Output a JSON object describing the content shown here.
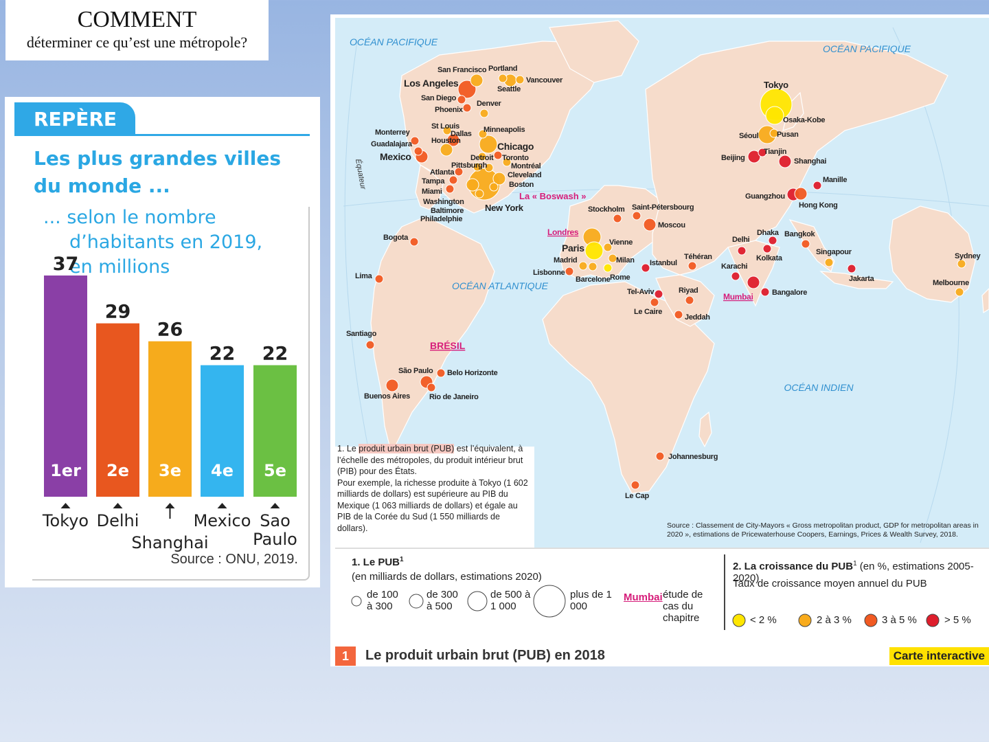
{
  "title": {
    "line1": "COMMENT",
    "line2": "déterminer ce qu’est une métropole?"
  },
  "repere": {
    "tab": "REPÈRE",
    "heading_line1": "Les plus grandes villes",
    "heading_line2": "du monde ...",
    "sub_line1": "... selon le nombre",
    "sub_line2": "d’habitants en 2019,",
    "sub_line3": "en millions",
    "source": "Source : ONU, 2019."
  },
  "chart_data": {
    "type": "bar",
    "title": "Les plus grandes villes du monde ... selon le nombre d’habitants en 2019, en millions",
    "categories": [
      "Tokyo",
      "Delhi",
      "Shanghai",
      "Mexico",
      "Sao Paulo"
    ],
    "values": [
      37,
      29,
      26,
      22,
      22
    ],
    "ranks": [
      "1er",
      "2e",
      "3e",
      "4e",
      "5e"
    ],
    "colors": [
      "#8a3fa6",
      "#e8571f",
      "#f6ab1c",
      "#34b5ef",
      "#6bc043"
    ],
    "ylim": [
      0,
      40
    ]
  },
  "map": {
    "oceans": [
      "OCÉAN PACIFIQUE",
      "OCÉAN PACIFIQUE",
      "OCÉAN ATLANTIQUE",
      "OCÉAN INDIEN"
    ],
    "equator": "Équateur",
    "cities": [
      {
        "name": "Tokyo",
        "size": 4,
        "growth": 1,
        "x": 1130,
        "y": 152
      },
      {
        "name": "Osaka-Kobe",
        "size": 3,
        "growth": 1,
        "x": 1128,
        "y": 168
      },
      {
        "name": "Séoul",
        "size": 3,
        "growth": 2,
        "x": 1117,
        "y": 196
      },
      {
        "name": "Pusan",
        "size": 1,
        "growth": 2,
        "x": 1127,
        "y": 194
      },
      {
        "name": "Tianjin",
        "size": 1,
        "growth": 4,
        "x": 1110,
        "y": 222
      },
      {
        "name": "Beijing",
        "size": 2,
        "growth": 4,
        "x": 1098,
        "y": 228
      },
      {
        "name": "Shanghai",
        "size": 2,
        "growth": 4,
        "x": 1143,
        "y": 235
      },
      {
        "name": "Manille",
        "size": 1,
        "growth": 4,
        "x": 1190,
        "y": 270
      },
      {
        "name": "Guangzhou",
        "size": 2,
        "growth": 4,
        "x": 1155,
        "y": 283
      },
      {
        "name": "Hong Kong",
        "size": 2,
        "growth": 3,
        "x": 1166,
        "y": 282
      },
      {
        "name": "Delhi",
        "size": 1,
        "growth": 4,
        "x": 1080,
        "y": 365
      },
      {
        "name": "Dhaka",
        "size": 1,
        "growth": 4,
        "x": 1125,
        "y": 350
      },
      {
        "name": "Bangkok",
        "size": 1,
        "growth": 3,
        "x": 1173,
        "y": 355
      },
      {
        "name": "Kolkata",
        "size": 1,
        "growth": 4,
        "x": 1117,
        "y": 362
      },
      {
        "name": "Singapour",
        "size": 1,
        "growth": 2,
        "x": 1207,
        "y": 382
      },
      {
        "name": "Karachi",
        "size": 1,
        "growth": 4,
        "x": 1071,
        "y": 402
      },
      {
        "name": "Mumbai",
        "size": 2,
        "growth": 4,
        "x": 1097,
        "y": 411
      },
      {
        "name": "Bangalore",
        "size": 1,
        "growth": 4,
        "x": 1114,
        "y": 425
      },
      {
        "name": "Jakarta",
        "size": 1,
        "growth": 4,
        "x": 1240,
        "y": 391
      },
      {
        "name": "Sydney",
        "size": 1,
        "growth": 2,
        "x": 1400,
        "y": 384
      },
      {
        "name": "Melbourne",
        "size": 1,
        "growth": 2,
        "x": 1397,
        "y": 425
      },
      {
        "name": "Stockholm",
        "size": 1,
        "growth": 3,
        "x": 899,
        "y": 318
      },
      {
        "name": "Saint-Pétersbourg",
        "size": 1,
        "growth": 3,
        "x": 927,
        "y": 314
      },
      {
        "name": "Moscou",
        "size": 2,
        "growth": 3,
        "x": 946,
        "y": 327
      },
      {
        "name": "Londres",
        "size": 3,
        "growth": 2,
        "x": 862,
        "y": 345
      },
      {
        "name": "Paris",
        "size": 3,
        "growth": 1,
        "x": 865,
        "y": 365
      },
      {
        "name": "Vienne",
        "size": 1,
        "growth": 2,
        "x": 885,
        "y": 360
      },
      {
        "name": "Milan",
        "size": 1,
        "growth": 2,
        "x": 892,
        "y": 376
      },
      {
        "name": "Madrid",
        "size": 1,
        "growth": 2,
        "x": 849,
        "y": 387
      },
      {
        "name": "Lisbonne",
        "size": 1,
        "growth": 3,
        "x": 829,
        "y": 395
      },
      {
        "name": "Barcelone",
        "size": 1,
        "growth": 2,
        "x": 863,
        "y": 388
      },
      {
        "name": "Rome",
        "size": 1,
        "growth": 1,
        "x": 885,
        "y": 390
      },
      {
        "name": "Istanbul",
        "size": 1,
        "growth": 4,
        "x": 940,
        "y": 390
      },
      {
        "name": "Téhéran",
        "size": 1,
        "growth": 3,
        "x": 1008,
        "y": 387
      },
      {
        "name": "Tel-Aviv",
        "size": 1,
        "growth": 4,
        "x": 959,
        "y": 428
      },
      {
        "name": "Le Caire",
        "size": 1,
        "growth": 3,
        "x": 953,
        "y": 440
      },
      {
        "name": "Riyad",
        "size": 1,
        "growth": 3,
        "x": 1004,
        "y": 437
      },
      {
        "name": "Jeddah",
        "size": 1,
        "growth": 3,
        "x": 988,
        "y": 458
      },
      {
        "name": "Johannesburg",
        "size": 1,
        "growth": 3,
        "x": 961,
        "y": 664
      },
      {
        "name": "Le Cap",
        "size": 1,
        "growth": 3,
        "x": 925,
        "y": 706
      },
      {
        "name": "Los Angeles",
        "size": 3,
        "growth": 3,
        "x": 680,
        "y": 130
      },
      {
        "name": "San Francisco",
        "size": 2,
        "growth": 2,
        "x": 694,
        "y": 117
      },
      {
        "name": "San Diego",
        "size": 1,
        "growth": 3,
        "x": 672,
        "y": 145
      },
      {
        "name": "Phoenix",
        "size": 1,
        "growth": 3,
        "x": 680,
        "y": 157
      },
      {
        "name": "Portland",
        "size": 1,
        "growth": 2,
        "x": 732,
        "y": 114
      },
      {
        "name": "Seattle",
        "size": 2,
        "growth": 2,
        "x": 743,
        "y": 117
      },
      {
        "name": "Vancouver",
        "size": 1,
        "growth": 2,
        "x": 757,
        "y": 116
      },
      {
        "name": "Denver",
        "size": 1,
        "growth": 2,
        "x": 705,
        "y": 165
      },
      {
        "name": "Minneapolis",
        "size": 1,
        "growth": 2,
        "x": 703,
        "y": 195
      },
      {
        "name": "St Louis",
        "size": 1,
        "growth": 2,
        "x": 651,
        "y": 190
      },
      {
        "name": "Dallas",
        "size": 2,
        "growth": 3,
        "x": 660,
        "y": 204
      },
      {
        "name": "Houston",
        "size": 2,
        "growth": 2,
        "x": 650,
        "y": 218
      },
      {
        "name": "Chicago",
        "size": 3,
        "growth": 2,
        "x": 711,
        "y": 210
      },
      {
        "name": "Monterrey",
        "size": 1,
        "growth": 3,
        "x": 604,
        "y": 205
      },
      {
        "name": "Guadalajara",
        "size": 1,
        "growth": 3,
        "x": 609,
        "y": 220
      },
      {
        "name": "Mexico",
        "size": 2,
        "growth": 3,
        "x": 614,
        "y": 228
      },
      {
        "name": "Detroit",
        "size": 1,
        "growth": 2,
        "x": 702,
        "y": 228
      },
      {
        "name": "Toronto",
        "size": 1,
        "growth": 3,
        "x": 725,
        "y": 226
      },
      {
        "name": "Montréal",
        "size": 1,
        "growth": 2,
        "x": 738,
        "y": 236
      },
      {
        "name": "Pittsburgh",
        "size": 1,
        "growth": 2,
        "x": 695,
        "y": 243
      },
      {
        "name": "Cleveland",
        "size": 1,
        "growth": 2,
        "x": 712,
        "y": 244
      },
      {
        "name": "Boston",
        "size": 2,
        "growth": 2,
        "x": 727,
        "y": 260
      },
      {
        "name": "Atlanta",
        "size": 1,
        "growth": 3,
        "x": 668,
        "y": 250
      },
      {
        "name": "Tampa",
        "size": 1,
        "growth": 3,
        "x": 660,
        "y": 262
      },
      {
        "name": "Miami",
        "size": 1,
        "growth": 3,
        "x": 655,
        "y": 275
      },
      {
        "name": "New York",
        "size": 4,
        "growth": 2,
        "x": 705,
        "y": 268
      },
      {
        "name": "Washington",
        "size": 2,
        "growth": 2,
        "x": 688,
        "y": 269
      },
      {
        "name": "Baltimore",
        "size": 1,
        "growth": 2,
        "x": 698,
        "y": 282
      },
      {
        "name": "Philadelphie",
        "size": 1,
        "growth": 2,
        "x": 719,
        "y": 272
      },
      {
        "name": "Bogota",
        "size": 1,
        "growth": 3,
        "x": 603,
        "y": 352
      },
      {
        "name": "Lima",
        "size": 1,
        "growth": 3,
        "x": 552,
        "y": 406
      },
      {
        "name": "Santiago",
        "size": 1,
        "growth": 3,
        "x": 539,
        "y": 502
      },
      {
        "name": "São Paulo",
        "size": 2,
        "growth": 3,
        "x": 621,
        "y": 556
      },
      {
        "name": "Belo Horizonte",
        "size": 1,
        "growth": 3,
        "x": 642,
        "y": 543
      },
      {
        "name": "Rio de Janeiro",
        "size": 1,
        "growth": 3,
        "x": 628,
        "y": 564
      },
      {
        "name": "Buenos Aires",
        "size": 2,
        "growth": 3,
        "x": 571,
        "y": 561
      }
    ],
    "region_labels": {
      "boswash": "La « Boswash »",
      "bresil": "BRÉSIL"
    },
    "caption": {
      "lead": "1. Le ",
      "hl": "produit urbain brut (PUB)",
      "rest": " est l’équivalent, à l’échelle des métropoles, du produit intérieur brut (PIB) pour des États.",
      "line2": "Pour exemple, la richesse produite à Tokyo (1 602 milliards de dollars) est supérieure au PIB du Mexique (1 063 milliards de dollars) et égale au PIB de la Corée du Sud (1 550 milliards de dollars)."
    },
    "source": "Source : Classement de City-Mayors « Gross metropolitan product, GDP for metropolitan areas in 2020 », estimations de Pricewaterhouse Coopers, Earnings, Prices & Wealth Survey, 2018.",
    "legend": {
      "pub_title": "1. Le PUB",
      "pub_sup": "1",
      "pub_sub": "(en milliards de dollars, estimations 2020)",
      "sizes": [
        "de 100 à 300",
        "de 300 à 500",
        "de 500 à 1 000",
        "plus de 1 000"
      ],
      "mumbai_label": "Mumbai",
      "mumbai_desc": "étude de cas du chapitre",
      "growth_title": "2. La croissance du PUB",
      "growth_sup": "1",
      "growth_title_rest": " (en %, estimations 2005-2020)",
      "growth_sub": "Taux de croissance moyen annuel du PUB",
      "growth_classes": [
        "< 2 %",
        "2 à 3 %",
        "3 à 5 %",
        "> 5 %"
      ],
      "growth_colors": [
        "#ffe600",
        "#f8ab1c",
        "#f15a22",
        "#de1e2c"
      ]
    },
    "bottom": {
      "num": "1",
      "title": "Le produit urbain brut (PUB) en 2018",
      "interactive": "Carte interactive"
    }
  }
}
